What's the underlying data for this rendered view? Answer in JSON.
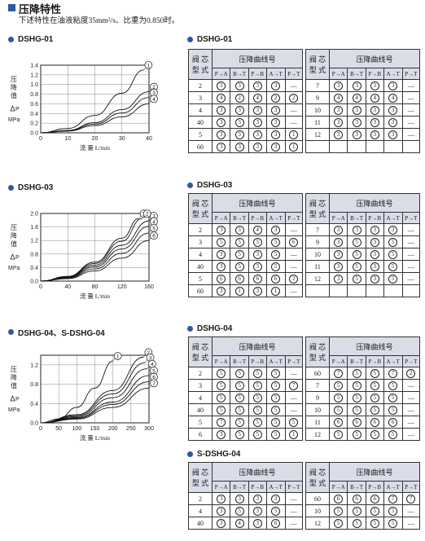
{
  "header": {
    "title": "压降特性",
    "subtitle": "下述特性在油液粘度35mm²/s、比重为0.850时。"
  },
  "table_labels": {
    "valve_type": "阀 芯\n型 式",
    "pressure_curve_no": "压降曲线号",
    "flow_paths": [
      "P→A",
      "B→T",
      "P→B",
      "A→T",
      "P→T"
    ]
  },
  "charts": [
    {
      "id": "dshg01",
      "label": "DSHG-01",
      "ylabel_chars": [
        "压",
        "降",
        "值"
      ],
      "ylabel_dp": "P",
      "ylabel_unit": "MPa",
      "xlabel": "流 量 L/min",
      "chart_data": {
        "type": "line",
        "xlim": [
          0,
          40
        ],
        "ylim": [
          0,
          1.4
        ],
        "xticks": [
          0,
          10,
          20,
          30,
          40
        ],
        "yticks": [
          0,
          0.2,
          0.4,
          0.6,
          0.8,
          1.0,
          1.2,
          1.4
        ],
        "grid": true,
        "series": [
          {
            "name": "①",
            "x": [
              0,
              10,
              20,
              30,
              38
            ],
            "y": [
              0,
              0.09,
              0.36,
              0.82,
              1.3
            ]
          },
          {
            "name": "②",
            "x": [
              0,
              10,
              20,
              30,
              40
            ],
            "y": [
              0,
              0.05,
              0.21,
              0.48,
              0.85
            ]
          },
          {
            "name": "③",
            "x": [
              0,
              10,
              20,
              30,
              40
            ],
            "y": [
              0,
              0.045,
              0.18,
              0.41,
              0.73
            ]
          },
          {
            "name": "④",
            "x": [
              0,
              10,
              20,
              30,
              40
            ],
            "y": [
              0,
              0.035,
              0.15,
              0.33,
              0.6
            ]
          }
        ]
      }
    },
    {
      "id": "dshg03",
      "label": "DSHG-03",
      "ylabel_chars": [
        "压",
        "降",
        "值"
      ],
      "ylabel_dp": "P",
      "ylabel_unit": "MPa",
      "xlabel": "流 量 L/min",
      "chart_data": {
        "type": "line",
        "xlim": [
          0,
          160
        ],
        "ylim": [
          0,
          2.0
        ],
        "xticks": [
          0,
          40,
          80,
          120,
          160
        ],
        "yticks": [
          0,
          0.4,
          0.8,
          1.2,
          1.6,
          2.0
        ],
        "grid": true,
        "series": [
          {
            "name": "①",
            "x": [
              0,
              40,
              80,
              120,
              145
            ],
            "y": [
              0,
              0.14,
              0.56,
              1.27,
              1.85
            ]
          },
          {
            "name": "②",
            "x": [
              0,
              40,
              80,
              120,
              150
            ],
            "y": [
              0,
              0.13,
              0.52,
              1.18,
              1.85
            ]
          },
          {
            "name": "③",
            "x": [
              0,
              40,
              80,
              120,
              160
            ],
            "y": [
              0,
              0.12,
              0.47,
              1.06,
              1.78
            ]
          },
          {
            "name": "④",
            "x": [
              0,
              40,
              80,
              120,
              160
            ],
            "y": [
              0,
              0.11,
              0.42,
              0.95,
              1.62
            ]
          },
          {
            "name": "⑤",
            "x": [
              0,
              40,
              80,
              120,
              160
            ],
            "y": [
              0,
              0.09,
              0.36,
              0.82,
              1.42
            ]
          },
          {
            "name": "⑥",
            "x": [
              0,
              40,
              80,
              120,
              160
            ],
            "y": [
              0,
              0.075,
              0.3,
              0.68,
              1.2
            ]
          }
        ]
      }
    },
    {
      "id": "dshg04",
      "label": "DSHG-04、S-DSHG-04",
      "ylabel_chars": [
        "压",
        "降",
        "值"
      ],
      "ylabel_dp": "P",
      "ylabel_unit": "MPa",
      "xlabel": "流 量 L/min",
      "chart_data": {
        "type": "line",
        "xlim": [
          0,
          300
        ],
        "ylim": [
          0,
          1.4
        ],
        "xticks": [
          0,
          50,
          100,
          150,
          200,
          250,
          300
        ],
        "yticks": [
          0,
          0.4,
          0.8,
          1.2
        ],
        "grid": true,
        "series": [
          {
            "name": "①",
            "x": [
              0,
              50,
              100,
              150,
              200
            ],
            "y": [
              0,
              0.08,
              0.32,
              0.72,
              1.28
            ]
          },
          {
            "name": "②",
            "x": [
              0,
              100,
              200,
              285
            ],
            "y": [
              0,
              0.17,
              0.67,
              1.36
            ]
          },
          {
            "name": "③",
            "x": [
              0,
              100,
              200,
              290
            ],
            "y": [
              0,
              0.15,
              0.6,
              1.25
            ]
          },
          {
            "name": "④",
            "x": [
              0,
              100,
              200,
              295
            ],
            "y": [
              0,
              0.13,
              0.52,
              1.12
            ]
          },
          {
            "name": "⑤",
            "x": [
              0,
              100,
              200,
              300
            ],
            "y": [
              0,
              0.11,
              0.43,
              0.98
            ]
          },
          {
            "name": "⑥",
            "x": [
              0,
              100,
              200,
              300
            ],
            "y": [
              0,
              0.095,
              0.38,
              0.85
            ]
          },
          {
            "name": "⑦",
            "x": [
              0,
              100,
              200,
              300
            ],
            "y": [
              0,
              0.08,
              0.32,
              0.72
            ]
          }
        ]
      }
    }
  ],
  "tables": [
    {
      "id": "t01",
      "label": "DSHG-01",
      "left": [
        {
          "spool": "2",
          "curves": [
            "③",
            "③",
            "③",
            "③",
            "—"
          ]
        },
        {
          "spool": "3",
          "curves": [
            "④",
            "②",
            "④",
            "②",
            "②"
          ]
        },
        {
          "spool": "4",
          "curves": [
            "③",
            "③",
            "③",
            "③",
            "—"
          ]
        },
        {
          "spool": "40",
          "curves": [
            "③",
            "③",
            "③",
            "③",
            "—"
          ]
        },
        {
          "spool": "5",
          "curves": [
            "③",
            "③",
            "③",
            "③",
            "①"
          ]
        },
        {
          "spool": "60",
          "curves": [
            "③",
            "③",
            "③",
            "③",
            "①"
          ]
        }
      ],
      "right": [
        {
          "spool": "7",
          "curves": [
            "③",
            "③",
            "③",
            "③",
            "—"
          ]
        },
        {
          "spool": "9",
          "curves": [
            "④",
            "④",
            "④",
            "④",
            "—"
          ]
        },
        {
          "spool": "10",
          "curves": [
            "③",
            "③",
            "③",
            "③",
            "—"
          ]
        },
        {
          "spool": "11",
          "curves": [
            "③",
            "③",
            "③",
            "③",
            "—"
          ]
        },
        {
          "spool": "12",
          "curves": [
            "③",
            "③",
            "③",
            "③",
            "—"
          ]
        }
      ]
    },
    {
      "id": "t03",
      "label": "DSHG-03",
      "left": [
        {
          "spool": "2",
          "curves": [
            "③",
            "③",
            "④",
            "③",
            "—"
          ]
        },
        {
          "spool": "3",
          "curves": [
            "⑤",
            "⑤",
            "⑤",
            "⑤",
            "⑥"
          ]
        },
        {
          "spool": "4",
          "curves": [
            "③",
            "⑤",
            "③",
            "⑤",
            "—"
          ]
        },
        {
          "spool": "40",
          "curves": [
            "③",
            "⑤",
            "③",
            "⑤",
            "—"
          ]
        },
        {
          "spool": "5",
          "curves": [
            "⑥",
            "⑥",
            "⑥",
            "⑥",
            "②"
          ]
        },
        {
          "spool": "60",
          "curves": [
            "③",
            "①",
            "③",
            "①",
            "—"
          ]
        }
      ],
      "right": [
        {
          "spool": "7",
          "curves": [
            "③",
            "③",
            "③",
            "③",
            "—"
          ]
        },
        {
          "spool": "9",
          "curves": [
            "③",
            "⑤",
            "③",
            "⑤",
            "—"
          ]
        },
        {
          "spool": "10",
          "curves": [
            "③",
            "⑤",
            "③",
            "⑤",
            "—"
          ]
        },
        {
          "spool": "11",
          "curves": [
            "③",
            "⑤",
            "③",
            "⑤",
            "—"
          ]
        },
        {
          "spool": "12",
          "curves": [
            "③",
            "⑤",
            "③",
            "⑤",
            "—"
          ]
        }
      ]
    },
    {
      "id": "t04",
      "label": "DSHG-04",
      "left": [
        {
          "spool": "2",
          "curves": [
            "⑤",
            "⑤",
            "⑤",
            "⑤",
            "—"
          ]
        },
        {
          "spool": "3",
          "curves": [
            "⑤",
            "⑤",
            "⑤",
            "⑤",
            "⑦"
          ]
        },
        {
          "spool": "4",
          "curves": [
            "⑤",
            "⑤",
            "⑤",
            "⑤",
            "—"
          ]
        },
        {
          "spool": "40",
          "curves": [
            "⑤",
            "⑤",
            "⑤",
            "⑤",
            "—"
          ]
        },
        {
          "spool": "5",
          "curves": [
            "⑦",
            "⑤",
            "⑤",
            "⑤",
            "⑤"
          ]
        },
        {
          "spool": "6",
          "curves": [
            "③",
            "⑤",
            "⑤",
            "⑤",
            "①"
          ]
        }
      ],
      "right": [
        {
          "spool": "60",
          "curves": [
            "⑦",
            "⑤",
            "⑤",
            "⑦",
            "②"
          ]
        },
        {
          "spool": "7",
          "curves": [
            "⑤",
            "⑤",
            "⑤",
            "⑤",
            "—"
          ]
        },
        {
          "spool": "9",
          "curves": [
            "⑤",
            "⑤",
            "⑤",
            "⑤",
            "—"
          ]
        },
        {
          "spool": "10",
          "curves": [
            "⑤",
            "⑤",
            "⑤",
            "⑤",
            "—"
          ]
        },
        {
          "spool": "11",
          "curves": [
            "⑥",
            "⑥",
            "⑥",
            "⑥",
            "—"
          ]
        },
        {
          "spool": "12",
          "curves": [
            "⑤",
            "⑤",
            "⑤",
            "⑤",
            "—"
          ]
        }
      ]
    },
    {
      "id": "ts04",
      "label": "S-DSHG-04",
      "left": [
        {
          "spool": "2",
          "curves": [
            "③",
            "③",
            "③",
            "③",
            "—"
          ]
        },
        {
          "spool": "4",
          "curves": [
            "③",
            "⑤",
            "③",
            "⑤",
            "—"
          ]
        },
        {
          "spool": "40",
          "curves": [
            "③",
            "④",
            "③",
            "⑥",
            "—"
          ]
        }
      ],
      "right": [
        {
          "spool": "60",
          "curves": [
            "⑥",
            "⑥",
            "⑥",
            "⑦",
            "⑦"
          ]
        },
        {
          "spool": "10",
          "curves": [
            "⑤",
            "⑤",
            "⑤",
            "⑤",
            "—"
          ]
        },
        {
          "spool": "12",
          "curves": [
            "⑤",
            "⑤",
            "⑤",
            "⑤",
            "—"
          ]
        }
      ]
    }
  ]
}
